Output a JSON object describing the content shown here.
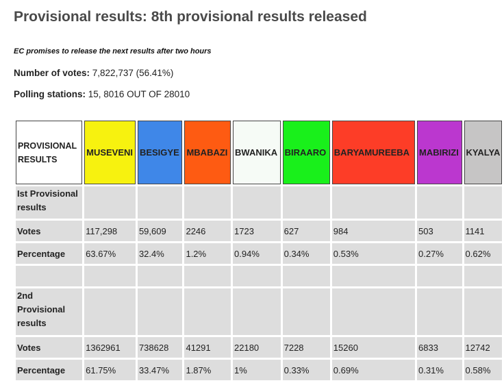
{
  "headline": "Provisional results: 8th provisional results released",
  "subheadline": "EC promises to release the next results after two hours",
  "votes_info": {
    "label": "Number of votes:",
    "value": "7,822,737 (56.41%)"
  },
  "stations_info": {
    "label": "Polling stations:",
    "value": "15, 8016 OUT OF 28010"
  },
  "table": {
    "header_label": "PROVISIONAL RESULTS",
    "candidates": [
      {
        "name": "MUSEVENI",
        "color": "#f7f20f"
      },
      {
        "name": "BESIGYE",
        "color": "#3f87e8"
      },
      {
        "name": "MBABAZI",
        "color": "#fe5b12"
      },
      {
        "name": "BWANIKA",
        "color": "#f6fbf6"
      },
      {
        "name": "BIRAARO",
        "color": "#19f01b"
      },
      {
        "name": "BARYAMUREEBA",
        "color": "#fd3d27"
      },
      {
        "name": "MABIRIZI",
        "color": "#bb37cf"
      },
      {
        "name": "KYALYA",
        "color": "#c6c5c5"
      }
    ],
    "first": {
      "label": "Ist Provisional results",
      "votes_label": "Votes",
      "votes": [
        "117,298",
        "59,609",
        "2246",
        "1723",
        "627",
        "984",
        "503",
        "1141"
      ],
      "pct_label": "Percentage",
      "pct": [
        "63.67%",
        "32.4%",
        "1.2%",
        "0.94%",
        "0.34%",
        "0.53%",
        "0.27%",
        "0.62%"
      ]
    },
    "second": {
      "label": "2nd Provisional results",
      "votes_label": "Votes",
      "votes": [
        "1362961",
        "738628",
        "41291",
        "22180",
        "7228",
        "15260",
        "6833",
        "12742"
      ],
      "pct_label": "Percentage",
      "pct": [
        "61.75%",
        "33.47%",
        "1.87%",
        "1%",
        "0.33%",
        "0.69%",
        "0.31%",
        "0.58%"
      ]
    }
  }
}
